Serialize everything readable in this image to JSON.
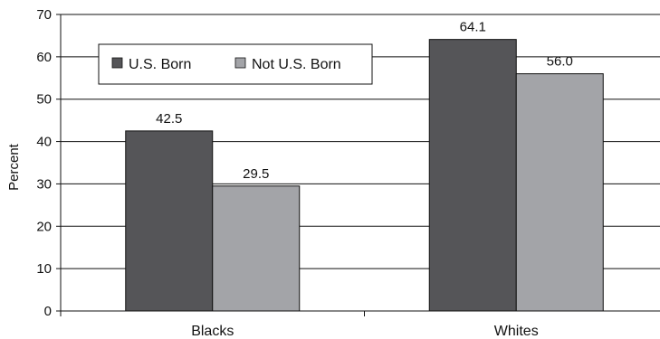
{
  "chart_data": {
    "type": "bar",
    "title": "",
    "xlabel": "",
    "ylabel": "Percent",
    "ylim": [
      0,
      70
    ],
    "yticks": [
      0,
      10,
      20,
      30,
      40,
      50,
      60,
      70
    ],
    "grid": true,
    "legend": "top-left",
    "categories": [
      "Blacks",
      "Whites"
    ],
    "series": [
      {
        "name": "U.S. Born",
        "values": [
          42.5,
          64.1
        ],
        "labels": [
          "42.5",
          "64.1"
        ],
        "color": "#555558"
      },
      {
        "name": "Not U.S. Born",
        "values": [
          29.5,
          56.0
        ],
        "labels": [
          "29.5",
          "56.0"
        ],
        "color": "#a3a4a8"
      }
    ]
  }
}
